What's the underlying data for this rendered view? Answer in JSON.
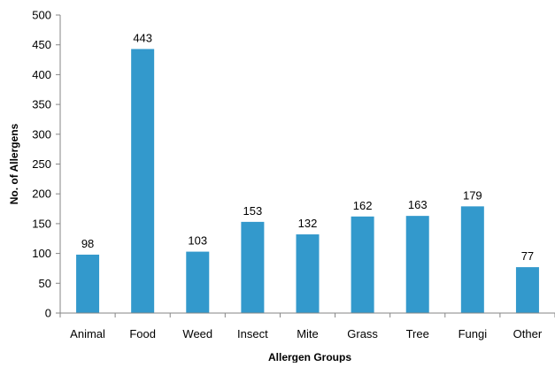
{
  "chart_data": {
    "type": "bar",
    "title": "",
    "xlabel": "Allergen Groups",
    "ylabel": "No. of Allergens",
    "categories": [
      "Animal",
      "Food",
      "Weed",
      "Insect",
      "Mite",
      "Grass",
      "Tree",
      "Fungi",
      "Other"
    ],
    "values": [
      98,
      443,
      103,
      153,
      132,
      162,
      163,
      179,
      77
    ],
    "data_labels": [
      "98",
      "443",
      "103",
      "153",
      "132",
      "162",
      "163",
      "179",
      "77"
    ],
    "ylim": [
      0,
      500
    ],
    "yticks": [
      "0",
      "50",
      "100",
      "150",
      "200",
      "250",
      "300",
      "350",
      "400",
      "450",
      "500"
    ],
    "grid": false,
    "legend": "none",
    "bar_color": "#3399CC",
    "axis_color": "#868686"
  }
}
